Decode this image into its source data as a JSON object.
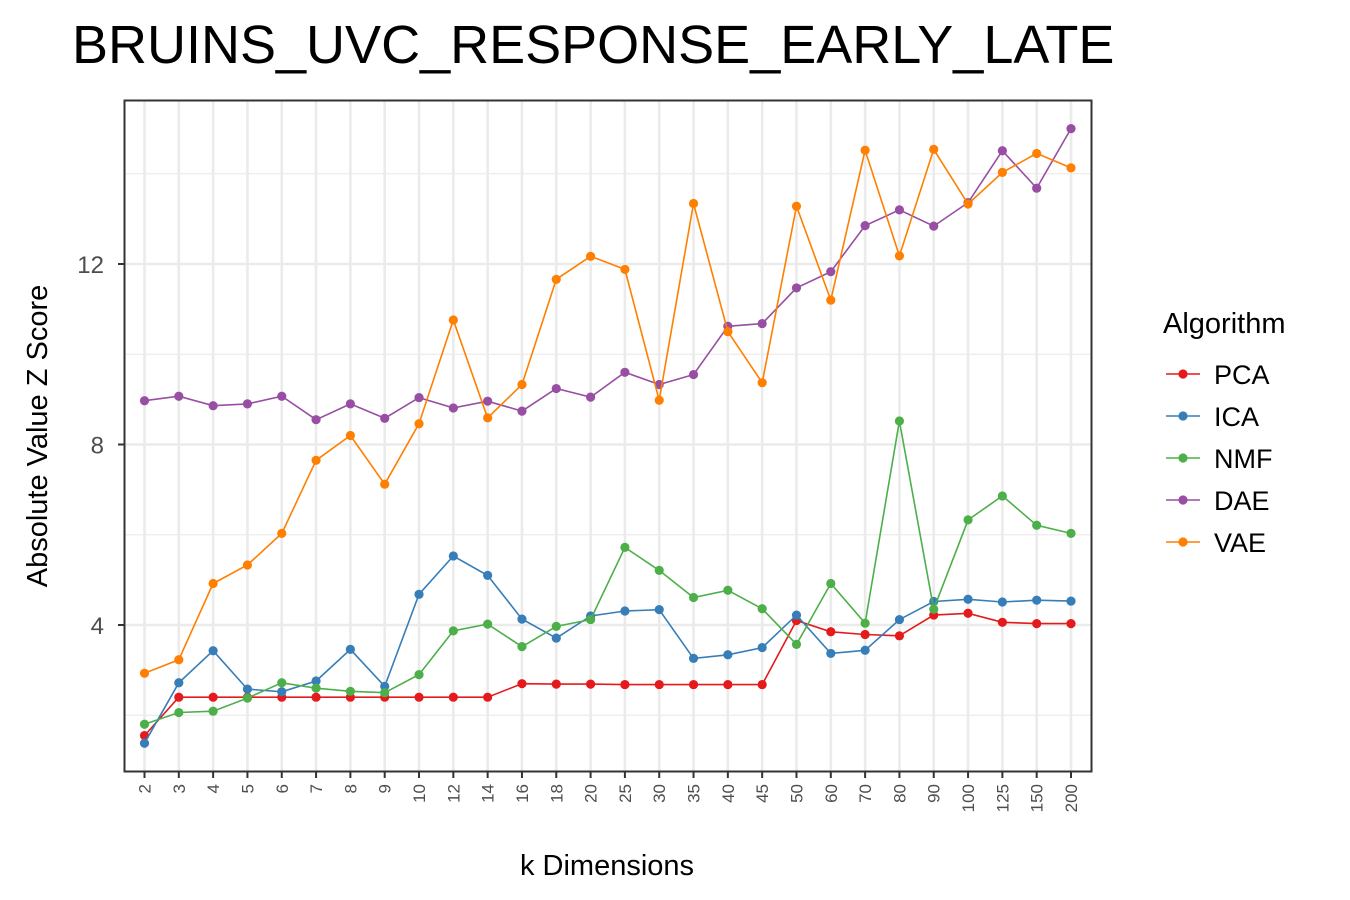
{
  "chart_data": {
    "type": "line",
    "title": "BRUINS_UVC_RESPONSE_EARLY_LATE",
    "xlabel": "k Dimensions",
    "ylabel": "Absolute Value Z Score",
    "categories": [
      "2",
      "3",
      "4",
      "5",
      "6",
      "7",
      "8",
      "9",
      "10",
      "12",
      "14",
      "16",
      "18",
      "20",
      "25",
      "30",
      "35",
      "40",
      "45",
      "50",
      "60",
      "70",
      "80",
      "90",
      "100",
      "125",
      "150",
      "200"
    ],
    "yticks": [
      4,
      8,
      12
    ],
    "ylim": [
      0.6,
      15.6
    ],
    "grid": true,
    "legend": {
      "title": "Algorithm",
      "position": "right"
    },
    "series": [
      {
        "name": "PCA",
        "color": "#e41a1c",
        "values": [
          1.55,
          2.4,
          2.4,
          2.4,
          2.4,
          2.4,
          2.4,
          2.4,
          2.4,
          2.4,
          2.4,
          2.7,
          2.69,
          2.69,
          2.68,
          2.68,
          2.68,
          2.68,
          2.68,
          4.1,
          3.85,
          3.79,
          3.76,
          4.22,
          4.26,
          4.06,
          4.03,
          4.03
        ]
      },
      {
        "name": "ICA",
        "color": "#377eb8",
        "values": [
          1.38,
          2.72,
          3.43,
          2.58,
          2.52,
          2.76,
          3.46,
          2.64,
          4.68,
          5.53,
          5.1,
          4.13,
          3.71,
          4.2,
          4.31,
          4.34,
          3.26,
          3.34,
          3.5,
          4.22,
          3.37,
          3.44,
          4.12,
          4.52,
          4.57,
          4.51,
          4.55,
          4.53
        ]
      },
      {
        "name": "NMF",
        "color": "#4daf4a",
        "values": [
          1.8,
          2.06,
          2.09,
          2.38,
          2.72,
          2.6,
          2.53,
          2.5,
          2.9,
          3.87,
          4.02,
          3.52,
          3.97,
          4.12,
          5.72,
          5.21,
          4.61,
          4.77,
          4.36,
          3.57,
          4.92,
          4.04,
          8.52,
          4.35,
          6.33,
          6.86,
          6.21,
          6.03
        ]
      },
      {
        "name": "DAE",
        "color": "#984ea3",
        "values": [
          8.97,
          9.07,
          8.86,
          8.9,
          9.07,
          8.55,
          8.9,
          8.58,
          9.04,
          8.81,
          8.96,
          8.74,
          9.24,
          9.05,
          9.6,
          9.33,
          9.55,
          10.62,
          10.68,
          11.47,
          11.83,
          12.85,
          13.2,
          12.84,
          13.36,
          14.51,
          13.68,
          15.0
        ]
      },
      {
        "name": "VAE",
        "color": "#ff7f00",
        "values": [
          2.93,
          3.23,
          4.92,
          5.33,
          6.03,
          7.65,
          8.2,
          7.12,
          8.46,
          10.76,
          8.59,
          9.33,
          11.66,
          12.17,
          11.88,
          8.98,
          13.34,
          10.5,
          9.37,
          13.28,
          11.2,
          14.52,
          12.18,
          14.54,
          13.33,
          14.03,
          14.45,
          14.13
        ]
      }
    ]
  }
}
